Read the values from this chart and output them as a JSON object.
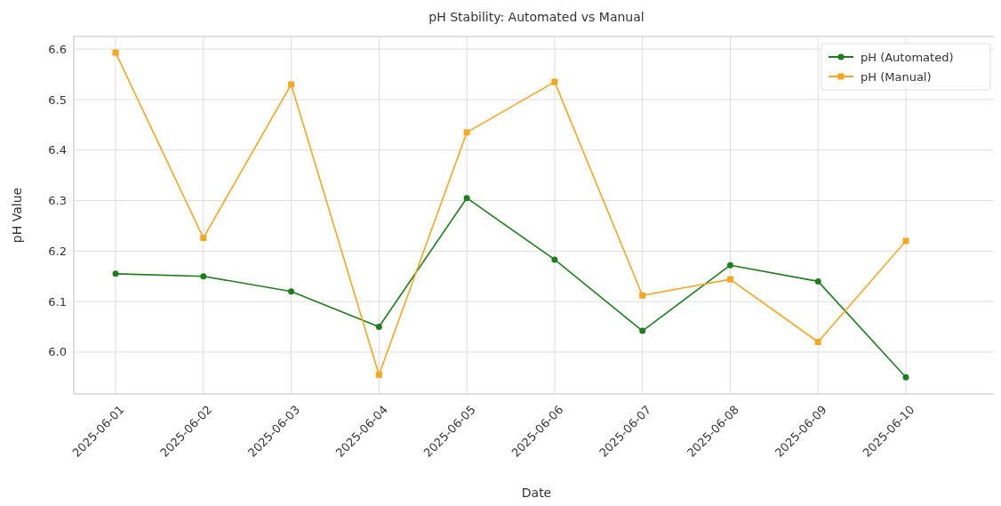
{
  "chart_data": {
    "type": "line",
    "title": "pH Stability: Automated vs Manual",
    "xlabel": "Date",
    "ylabel": "pH Value",
    "categories": [
      "2025-06-01",
      "2025-06-02",
      "2025-06-03",
      "2025-06-04",
      "2025-06-05",
      "2025-06-06",
      "2025-06-07",
      "2025-06-08",
      "2025-06-09",
      "2025-06-10"
    ],
    "series": [
      {
        "name": "pH (Automated)",
        "color": "#1e7d1e",
        "marker": "circle",
        "values": [
          6.155,
          6.15,
          6.12,
          6.05,
          6.305,
          6.183,
          6.042,
          6.172,
          6.14,
          5.95
        ]
      },
      {
        "name": "pH (Manual)",
        "color": "#f5a623",
        "marker": "square",
        "values": [
          6.593,
          6.226,
          6.53,
          5.955,
          6.435,
          6.535,
          6.112,
          6.144,
          6.02,
          6.22
        ]
      }
    ],
    "ylim": [
      5.917,
      6.625
    ],
    "yticks": [
      {
        "value": 6.0,
        "label": "6.0"
      },
      6.1,
      6.2,
      6.3,
      6.4,
      6.5,
      6.6
    ],
    "grid": true,
    "legend": "top right",
    "line_style": "solid"
  }
}
